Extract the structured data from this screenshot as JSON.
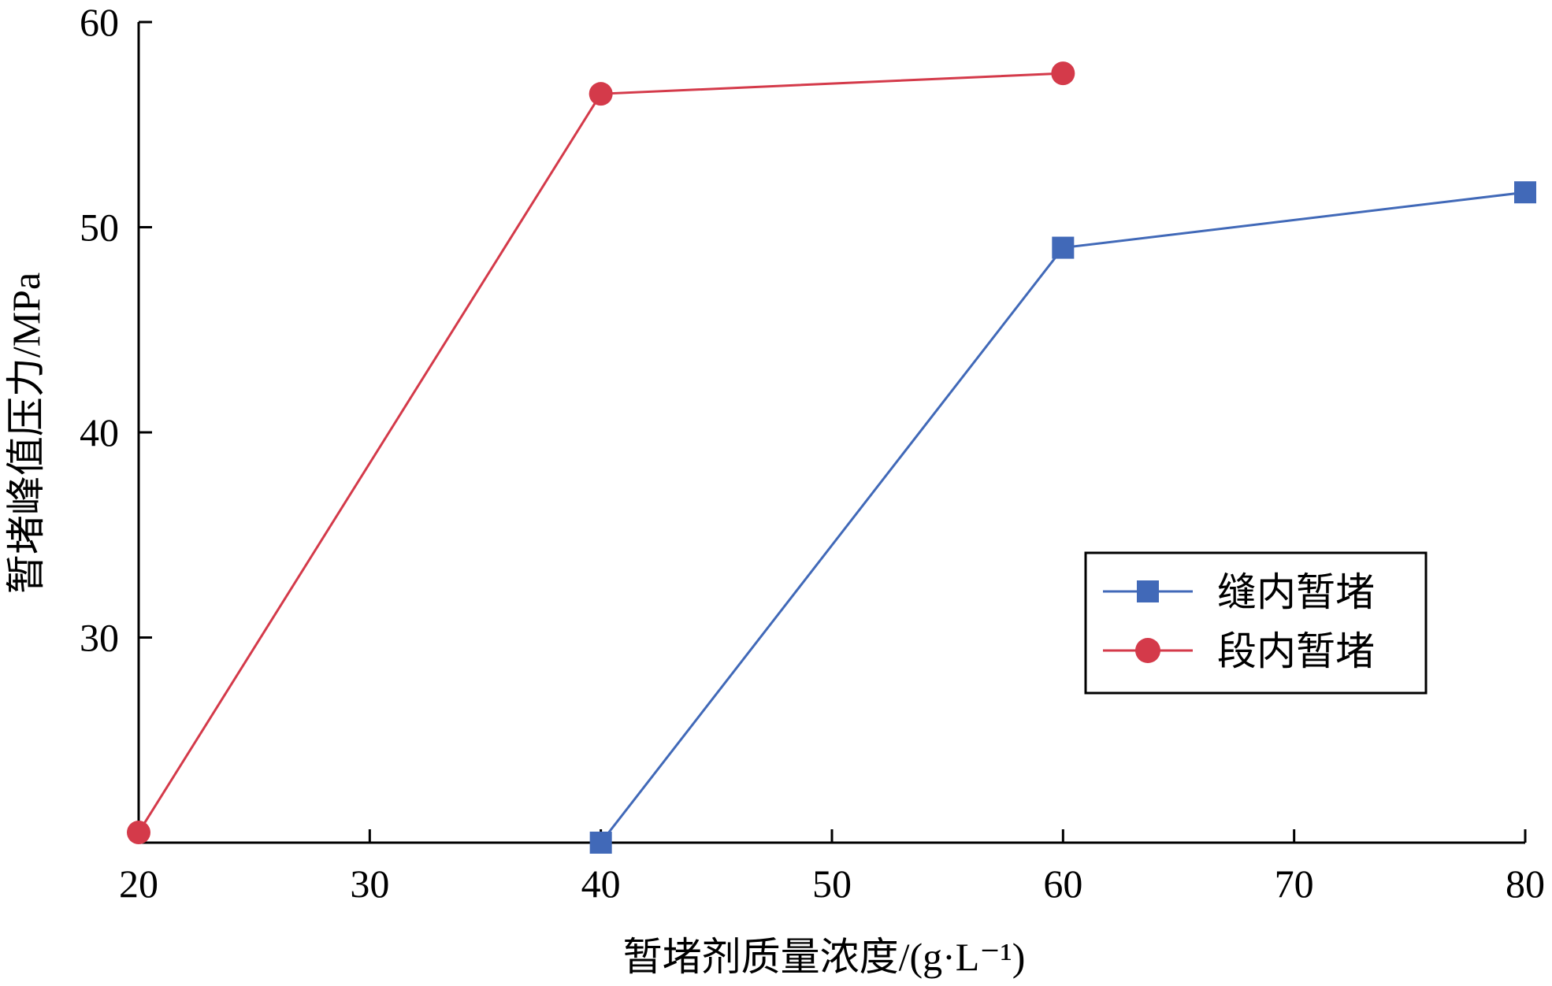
{
  "chart_data": {
    "type": "line",
    "title": "",
    "xlabel": "暂堵剂质量浓度/(g·L⁻¹)",
    "ylabel": "暂堵峰值压力/MPa",
    "xlim": [
      20,
      80
    ],
    "ylim": [
      20,
      60
    ],
    "x_ticks": [
      "20",
      "30",
      "40",
      "50",
      "60",
      "70",
      "80"
    ],
    "y_ticks": [
      "30",
      "40",
      "50",
      "60"
    ],
    "grid": false,
    "legend_position": "center-right",
    "series": [
      {
        "name": "缝内暂堵",
        "color": "#4169b8",
        "marker": "square",
        "points": [
          {
            "x": 40,
            "y": 20
          },
          {
            "x": 60,
            "y": 49
          },
          {
            "x": 80,
            "y": 51.7
          }
        ]
      },
      {
        "name": "段内暂堵",
        "color": "#d43a4a",
        "marker": "circle",
        "points": [
          {
            "x": 20,
            "y": 20.5
          },
          {
            "x": 40,
            "y": 56.5
          },
          {
            "x": 60,
            "y": 57.5
          }
        ]
      }
    ]
  }
}
